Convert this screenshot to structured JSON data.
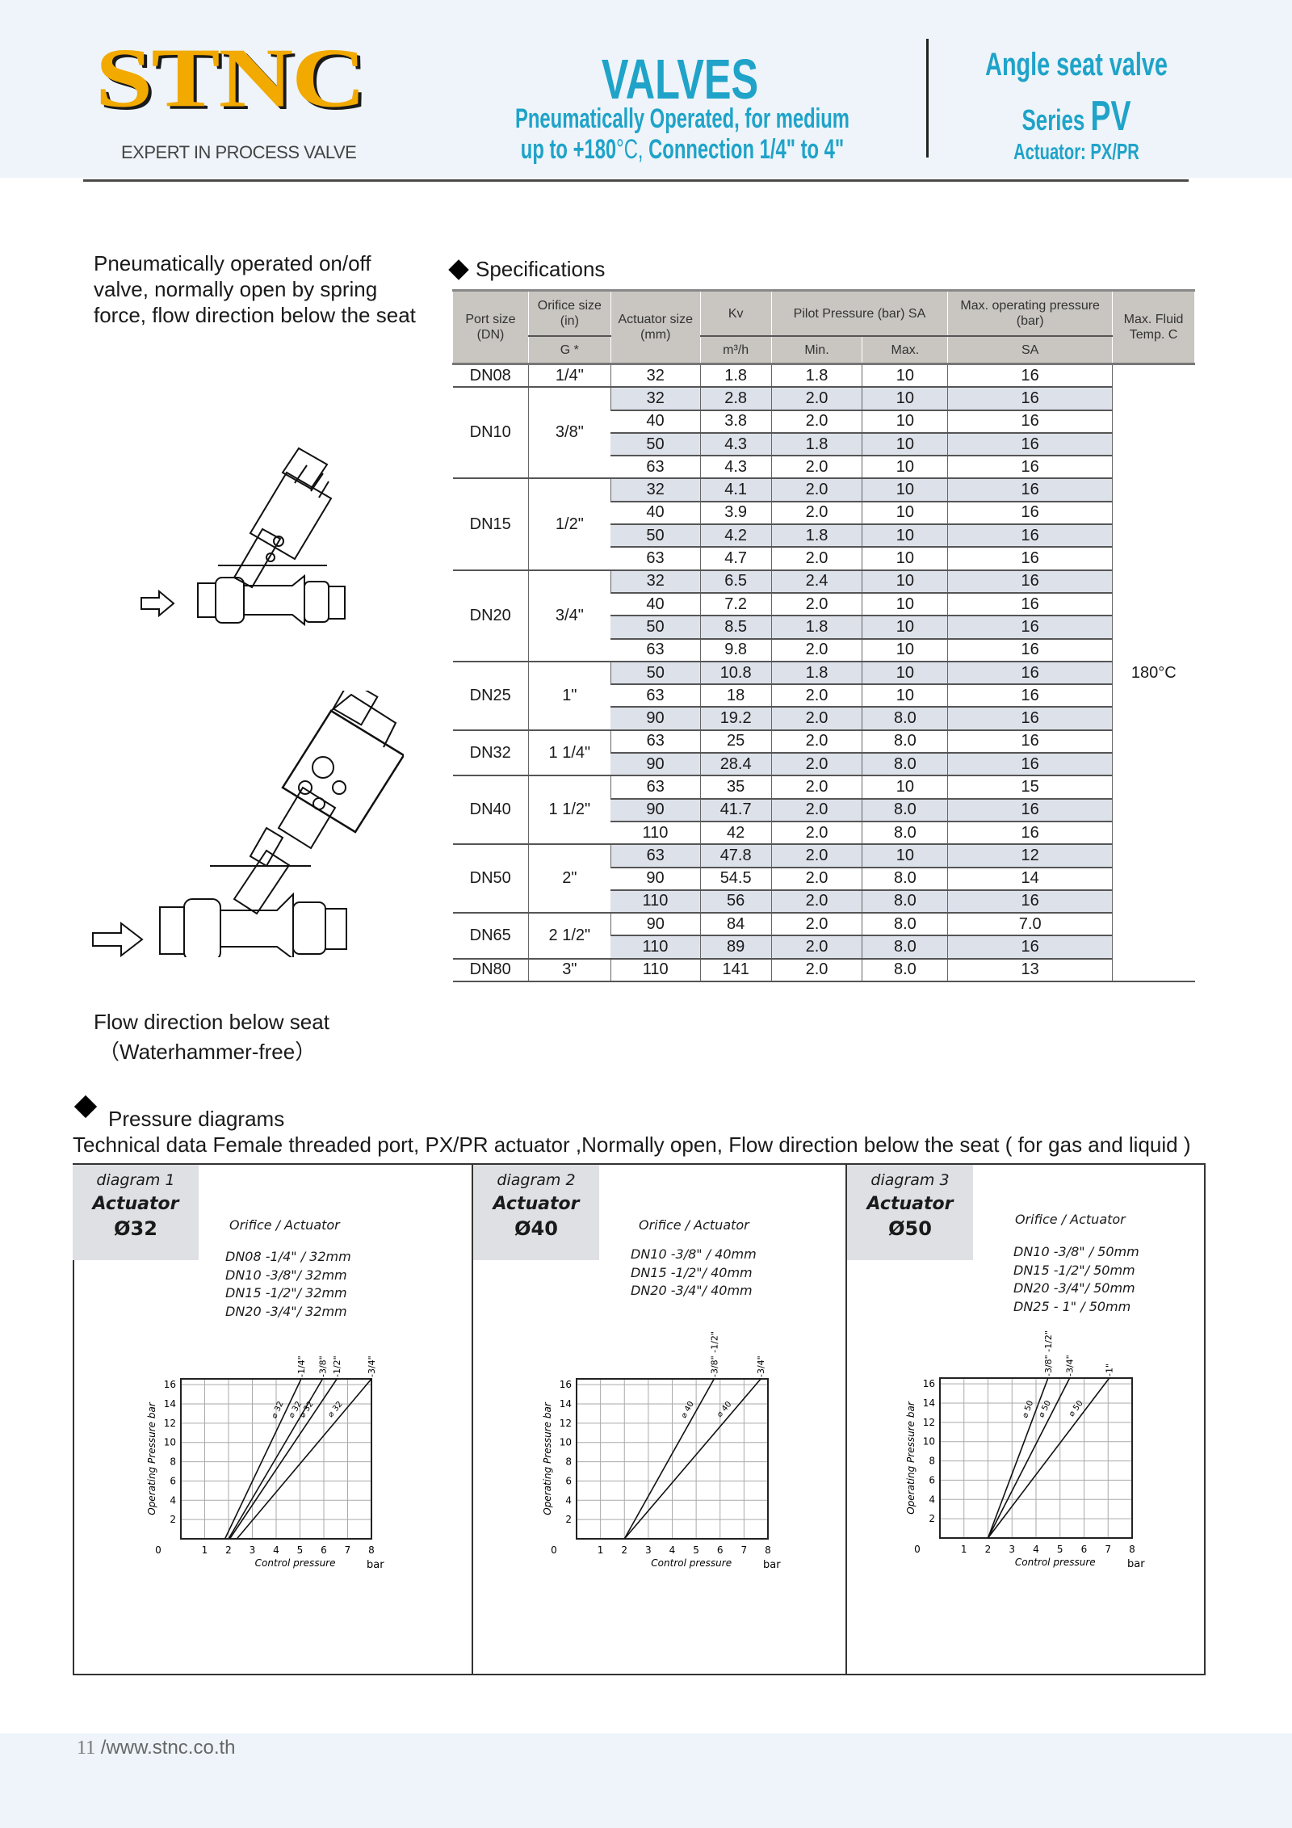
{
  "header": {
    "logo_text": "STNC",
    "tagline": "EXPERT IN PROCESS VALVE",
    "title": "VALVES",
    "subtitle_line1": "Pneumatically Operated, for medium",
    "subtitle_line2a": "up to +180",
    "subtitle_deg": "°C,",
    "subtitle_line2b": " Connection 1/4\" to 4\"",
    "product": "Angle seat valve",
    "series_label": "Series ",
    "series": "PV",
    "actuator": "Actuator:  PX/PR",
    "colors": {
      "brand_yellow": "#f2a900",
      "accent_cyan": "#1fa3c9",
      "band": "#eef4f9"
    }
  },
  "description": "Pneumatically operated on/off valve, normally open by spring force, flow direction below the seat",
  "specifications": {
    "heading": "Specifications",
    "headers": {
      "port_size": "Port size (DN)",
      "orifice": "Orifice size (in)",
      "orifice_sub": "G *",
      "actuator": "Actuator size (mm)",
      "kv": "Kv",
      "kv_unit": "m³/h",
      "pilot": "Pilot Pressure (bar) SA",
      "pilot_min": "Min.",
      "pilot_max": "Max.",
      "max_op": "Max. operating pressure (bar)",
      "max_op_sub": "SA",
      "max_temp": "Max. Fluid Temp. C"
    },
    "max_temp_value": "180°C",
    "groups": [
      {
        "dn": "DN08",
        "orifice": "1/4\"",
        "rows": [
          [
            "32",
            "1.8",
            "1.8",
            "10",
            "16"
          ]
        ]
      },
      {
        "dn": "DN10",
        "orifice": "3/8\"",
        "rows": [
          [
            "32",
            "2.8",
            "2.0",
            "10",
            "16"
          ],
          [
            "40",
            "3.8",
            "2.0",
            "10",
            "16"
          ],
          [
            "50",
            "4.3",
            "1.8",
            "10",
            "16"
          ],
          [
            "63",
            "4.3",
            "2.0",
            "10",
            "16"
          ]
        ]
      },
      {
        "dn": "DN15",
        "orifice": "1/2\"",
        "rows": [
          [
            "32",
            "4.1",
            "2.0",
            "10",
            "16"
          ],
          [
            "40",
            "3.9",
            "2.0",
            "10",
            "16"
          ],
          [
            "50",
            "4.2",
            "1.8",
            "10",
            "16"
          ],
          [
            "63",
            "4.7",
            "2.0",
            "10",
            "16"
          ]
        ]
      },
      {
        "dn": "DN20",
        "orifice": "3/4\"",
        "rows": [
          [
            "32",
            "6.5",
            "2.4",
            "10",
            "16"
          ],
          [
            "40",
            "7.2",
            "2.0",
            "10",
            "16"
          ],
          [
            "50",
            "8.5",
            "1.8",
            "10",
            "16"
          ],
          [
            "63",
            "9.8",
            "2.0",
            "10",
            "16"
          ]
        ]
      },
      {
        "dn": "DN25",
        "orifice": "1\"",
        "rows": [
          [
            "50",
            "10.8",
            "1.8",
            "10",
            "16"
          ],
          [
            "63",
            "18",
            "2.0",
            "10",
            "16"
          ],
          [
            "90",
            "19.2",
            "2.0",
            "8.0",
            "16"
          ]
        ]
      },
      {
        "dn": "DN32",
        "orifice": "1 1/4\"",
        "rows": [
          [
            "63",
            "25",
            "2.0",
            "8.0",
            "16"
          ],
          [
            "90",
            "28.4",
            "2.0",
            "8.0",
            "16"
          ]
        ]
      },
      {
        "dn": "DN40",
        "orifice": "1 1/2\"",
        "rows": [
          [
            "63",
            "35",
            "2.0",
            "10",
            "15"
          ],
          [
            "90",
            "41.7",
            "2.0",
            "8.0",
            "16"
          ],
          [
            "110",
            "42",
            "2.0",
            "8.0",
            "16"
          ]
        ]
      },
      {
        "dn": "DN50",
        "orifice": "2\"",
        "rows": [
          [
            "63",
            "47.8",
            "2.0",
            "10",
            "12"
          ],
          [
            "90",
            "54.5",
            "2.0",
            "8.0",
            "14"
          ],
          [
            "110",
            "56",
            "2.0",
            "8.0",
            "16"
          ]
        ]
      },
      {
        "dn": "DN65",
        "orifice": "2 1/2\"",
        "rows": [
          [
            "90",
            "84",
            "2.0",
            "8.0",
            "7.0"
          ],
          [
            "110",
            "89",
            "2.0",
            "8.0",
            "16"
          ]
        ]
      },
      {
        "dn": "DN80",
        "orifice": "3\"",
        "rows": [
          [
            "110",
            "141",
            "2.0",
            "8.0",
            "13"
          ]
        ]
      }
    ]
  },
  "flow": {
    "line1": "Flow direction below seat",
    "line2": "（Waterhammer-free）"
  },
  "pressure": {
    "heading": "Pressure diagrams",
    "technical": "Technical data Female threaded port, PX/PR actuator ,Normally open, Flow direction below the seat ( for gas and liquid )"
  },
  "chart_data": [
    {
      "type": "line",
      "label": "diagram 1",
      "actuator_label": "Actuator",
      "actuator": "Ø32",
      "orifice_title": "Orifice  / Actuator",
      "orifice_list": [
        "DN08 -1/4\" / 32mm",
        "DN10 -3/8\"/ 32mm",
        "DN15 -1/2\"/ 32mm",
        "DN20 -3/4\"/ 32mm"
      ],
      "xlabel": "Control pressure",
      "xunit": "bar",
      "ylabel": "Operating Pressure  bar",
      "xlim": [
        0,
        8
      ],
      "ylim": [
        0,
        16.6
      ],
      "xticks": [
        0,
        1,
        2,
        3,
        4,
        5,
        6,
        7,
        8
      ],
      "yticks": [
        2,
        4,
        6,
        8,
        10,
        12,
        14,
        16
      ],
      "grid": true,
      "series": [
        {
          "name": "-1/4\"",
          "line_label": "⌀ 32",
          "x": [
            1.85,
            5.05
          ],
          "y": [
            0,
            16.6
          ]
        },
        {
          "name": "-3/8\"",
          "line_label": "⌀ 32",
          "x": [
            2.0,
            5.95
          ],
          "y": [
            0,
            16.6
          ]
        },
        {
          "name": "-1/2\"",
          "line_label": "⌀ 32",
          "x": [
            2.05,
            6.55
          ],
          "y": [
            0,
            16.6
          ]
        },
        {
          "name": "-3/4\"",
          "line_label": "⌀ 32",
          "x": [
            2.35,
            8.0
          ],
          "y": [
            0,
            16.6
          ]
        }
      ]
    },
    {
      "type": "line",
      "label": "diagram 2",
      "actuator_label": "Actuator",
      "actuator": "Ø40",
      "orifice_title": "Orifice  / Actuator",
      "orifice_list": [
        "DN10 -3/8\" / 40mm",
        "DN15 -1/2\"/ 40mm",
        "DN20 -3/4\"/ 40mm"
      ],
      "xlabel": "Control pressure",
      "xunit": "bar",
      "ylabel": "Operating Pressure bar",
      "xlim": [
        0,
        8
      ],
      "ylim": [
        0,
        16.6
      ],
      "xticks": [
        0,
        1,
        2,
        3,
        4,
        5,
        6,
        7,
        8
      ],
      "yticks": [
        2,
        4,
        6,
        8,
        10,
        12,
        14,
        16
      ],
      "grid": true,
      "series": [
        {
          "name": "-3/8\"  -1/2\"",
          "line_label": "⌀ 40",
          "x": [
            2.0,
            5.75
          ],
          "y": [
            0,
            16.6
          ]
        },
        {
          "name": "-3/4\"",
          "line_label": "⌀ 40",
          "x": [
            2.0,
            7.7
          ],
          "y": [
            0,
            16.6
          ]
        }
      ]
    },
    {
      "type": "line",
      "label": "diagram 3",
      "actuator_label": "Actuator",
      "actuator": "Ø50",
      "orifice_title": "Orifice  / Actuator",
      "orifice_list": [
        "DN10 -3/8\" / 50mm",
        "DN15 -1/2\"/ 50mm",
        "DN20 -3/4\"/ 50mm",
        "DN25 - 1\"  / 50mm"
      ],
      "xlabel": "Control pressure",
      "xunit": "bar",
      "ylabel": "Operating Pressure  bar",
      "xlim": [
        0,
        8
      ],
      "ylim": [
        0,
        16.6
      ],
      "xticks": [
        0,
        1,
        2,
        3,
        4,
        5,
        6,
        7,
        8
      ],
      "yticks": [
        2,
        4,
        6,
        8,
        10,
        12,
        14,
        16
      ],
      "grid": true,
      "series": [
        {
          "name": "-3/8\"  -1/2\"",
          "line_label": "⌀ 50",
          "x": [
            2.0,
            4.5
          ],
          "y": [
            0,
            16.6
          ]
        },
        {
          "name": "-3/4\"",
          "line_label": "⌀ 50",
          "x": [
            2.0,
            5.4
          ],
          "y": [
            0,
            16.6
          ]
        },
        {
          "name": "-1\"",
          "line_label": "⌀ 50",
          "x": [
            2.0,
            7.05
          ],
          "y": [
            0,
            16.6
          ]
        }
      ]
    }
  ],
  "footer": {
    "page": "11",
    "url": "/www.stnc.co.th"
  }
}
